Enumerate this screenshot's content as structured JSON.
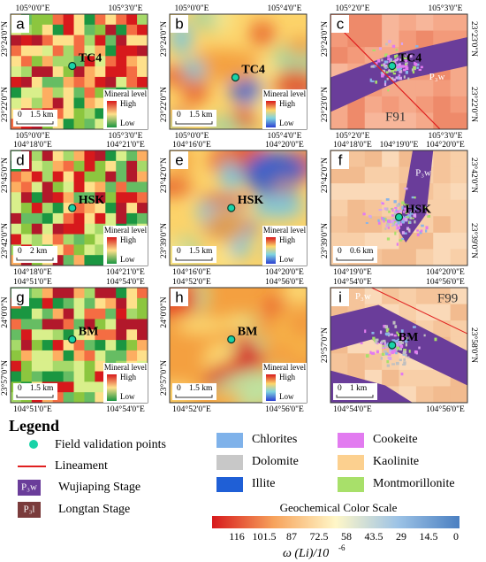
{
  "panels": [
    {
      "letter": "a",
      "top": [
        "105°0'0\"E",
        "105°3'0\"E"
      ],
      "bottom": [
        "105°0'0\"E",
        "105°3'0\"E"
      ],
      "left": [
        "23°24'0\"N",
        "23°22'0\"N"
      ],
      "right": [],
      "site": "TC4",
      "scale": [
        "0",
        "1.5 km"
      ],
      "level": {
        "title": "Mineral level",
        "high": "High",
        "low": "Low"
      },
      "extra": []
    },
    {
      "letter": "b",
      "top": [
        "105°0'0\"E",
        "105°4'0\"E"
      ],
      "bottom": [
        "105°0'0\"E",
        "105°4'0\"E"
      ],
      "left": [
        "23°24'0\"N",
        "23°22'0\"N"
      ],
      "right": [],
      "site": "TC4",
      "scale": [
        "0",
        "1.5 km"
      ],
      "level": {
        "title": "Mineral level",
        "high": "High",
        "low": "Low"
      },
      "extra": []
    },
    {
      "letter": "c",
      "top": [
        "105°2'0\"E",
        "105°3'0\"E"
      ],
      "bottom": [
        "105°2'0\"E",
        "105°3'0\"E"
      ],
      "left": [
        "23°24'0\"N",
        "23°23'0\"N"
      ],
      "right": [
        "23°23'0\"N",
        "23°22'0\"N"
      ],
      "site": "TC4",
      "scale": [],
      "extra": [
        "P₃w",
        "F91"
      ]
    },
    {
      "letter": "d",
      "top": [
        "104°18'0\"E",
        "104°21'0\"E"
      ],
      "bottom": [
        "104°18'0\"E",
        "104°21'0\"E"
      ],
      "left": [
        "23°45'0\"N",
        "23°42'0\"N"
      ],
      "right": [],
      "site": "HSK",
      "scale": [
        "0",
        "2 km"
      ],
      "level": {
        "title": "Mineral level",
        "high": "High",
        "low": "Low"
      },
      "extra": []
    },
    {
      "letter": "e",
      "top": [
        "104°16'0\"E",
        "104°20'0\"E"
      ],
      "bottom": [
        "104°16'0\"E",
        "104°20'0\"E"
      ],
      "left": [
        "23°42'0\"N",
        "23°39'0\"N"
      ],
      "right": [],
      "site": "HSK",
      "scale": [
        "0",
        "1.5 km"
      ],
      "level": {
        "title": "Mineral level",
        "high": "High",
        "low": "Low"
      },
      "extra": []
    },
    {
      "letter": "f",
      "top": [
        "104°18'0\"E",
        "104°19'0\"E",
        "104°20'0\"E"
      ],
      "bottom": [
        "104°19'0\"E",
        "104°20'0\"E"
      ],
      "left": [
        "23°42'0\"N",
        "23°39'0\"N"
      ],
      "right": [
        "23°42'0\"N",
        "23°39'0\"N"
      ],
      "site": "HSK",
      "scale": [
        "0",
        "0.6 km"
      ],
      "extra": [
        "P₃w"
      ]
    },
    {
      "letter": "g",
      "top": [
        "104°51'0\"E",
        "104°54'0\"E"
      ],
      "bottom": [
        "104°51'0\"E",
        "104°54'0\"E"
      ],
      "left": [
        "24°0'0\"N",
        "23°57'0\"N"
      ],
      "right": [],
      "site": "BM",
      "scale": [
        "0",
        "1.5 km"
      ],
      "level": {
        "title": "Mineral level",
        "high": "High",
        "low": "Low"
      },
      "extra": []
    },
    {
      "letter": "h",
      "top": [
        "104°52'0\"E",
        "104°56'0\"E"
      ],
      "bottom": [
        "104°52'0\"E",
        "104°56'0\"E"
      ],
      "left": [
        "24°0'0\"N",
        "23°57'0\"N"
      ],
      "right": [],
      "site": "BM",
      "scale": [
        "0",
        "1.5 km"
      ],
      "level": {
        "title": "Mineral level",
        "high": "High",
        "low": "Low"
      },
      "extra": []
    },
    {
      "letter": "i",
      "top": [
        "104°54'0\"E",
        "104°56'0\"E"
      ],
      "bottom": [
        "104°54'0\"E",
        "104°56'0\"E"
      ],
      "left": [
        "23°57'0\"N"
      ],
      "right": [
        "23°58'0\"N"
      ],
      "site": "BM",
      "scale": [
        "0",
        "1 km"
      ],
      "extra": [
        "P₃w",
        "F99"
      ]
    }
  ],
  "legend": {
    "title": "Legend",
    "points": "Field validation points",
    "lineament": "Lineament",
    "stages": [
      {
        "symbol": "P₃w",
        "name": "Wujiaping Stage"
      },
      {
        "symbol": "P₃l",
        "name": "Longtan Stage"
      }
    ],
    "minerals": [
      "Chlorites",
      "Cookeite",
      "Dolomite",
      "Kaolinite",
      "Illite",
      "Montmorillonite"
    ]
  },
  "color_scale": {
    "title": "Geochemical Color Scale",
    "ticks": [
      116,
      101.5,
      87,
      72.5,
      58,
      43.5,
      29,
      14.5,
      0
    ],
    "axis_label": "ω (Li)/10",
    "axis_exponent": "-6"
  }
}
